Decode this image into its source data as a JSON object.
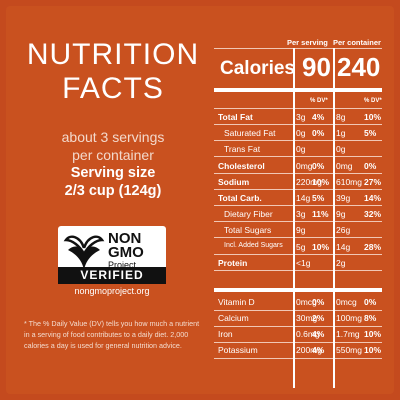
{
  "title_line1": "NUTRITION",
  "title_line2": "FACTS",
  "servings_line1": "about 3 servings",
  "servings_line2": "per container",
  "serving_size_label": "Serving size",
  "serving_size_value": "2/3 cup (124g)",
  "badge": {
    "non": "NON",
    "gmo": "GMO",
    "project": "Project",
    "verified": "VERIFIED",
    "url": "nongmoproject.org"
  },
  "footnote": "* The % Daily Value (DV) tells you how much a nutrient in a serving of food contributes to a daily diet. 2,000 calories a day is used for general nutrition advice.",
  "table": {
    "per_serving": "Per serving",
    "per_container": "Per container",
    "calories_label": "Calories",
    "calories_serving": "90",
    "calories_container": "240",
    "dv_header": "% DV*",
    "rows": [
      {
        "label": "Total Fat",
        "bold": true,
        "s_amt": "3g",
        "s_dv": "4%",
        "c_amt": "8g",
        "c_dv": "10%"
      },
      {
        "label": "Saturated Fat",
        "bold": false,
        "s_amt": "0g",
        "s_dv": "0%",
        "c_amt": "1g",
        "c_dv": "5%"
      },
      {
        "label": "Trans Fat",
        "bold": false,
        "s_amt": "0g",
        "s_dv": "",
        "c_amt": "0g",
        "c_dv": ""
      },
      {
        "label": "Cholesterol",
        "bold": true,
        "s_amt": "0mg",
        "s_dv": "0%",
        "c_amt": "0mg",
        "c_dv": "0%"
      },
      {
        "label": "Sodium",
        "bold": true,
        "s_amt": "220mg",
        "s_dv": "10%",
        "c_amt": "610mg",
        "c_dv": "27%"
      },
      {
        "label": "Total Carb.",
        "bold": true,
        "s_amt": "14g",
        "s_dv": "5%",
        "c_amt": "39g",
        "c_dv": "14%"
      },
      {
        "label": "Dietary Fiber",
        "bold": false,
        "s_amt": "3g",
        "s_dv": "11%",
        "c_amt": "9g",
        "c_dv": "32%"
      },
      {
        "label": "Total Sugars",
        "bold": false,
        "s_amt": "9g",
        "s_dv": "",
        "c_amt": "26g",
        "c_dv": ""
      },
      {
        "label": "Incl. Added Sugars",
        "bold": false,
        "s_amt": "5g",
        "s_dv": "10%",
        "c_amt": "14g",
        "c_dv": "28%"
      },
      {
        "label": "Protein",
        "bold": true,
        "s_amt": "<1g",
        "s_dv": "",
        "c_amt": "2g",
        "c_dv": ""
      }
    ],
    "minerals": [
      {
        "label": "Vitamin D",
        "s_amt": "0mcg",
        "s_dv": "0%",
        "c_amt": "0mcg",
        "c_dv": "0%"
      },
      {
        "label": "Calcium",
        "s_amt": "30mg",
        "s_dv": "2%",
        "c_amt": "100mg",
        "c_dv": "8%"
      },
      {
        "label": "Iron",
        "s_amt": "0.6mg",
        "s_dv": "4%",
        "c_amt": "1.7mg",
        "c_dv": "10%"
      },
      {
        "label": "Potassium",
        "s_amt": "200mg",
        "s_dv": "4%",
        "c_amt": "550mg",
        "c_dv": "10%"
      }
    ]
  }
}
